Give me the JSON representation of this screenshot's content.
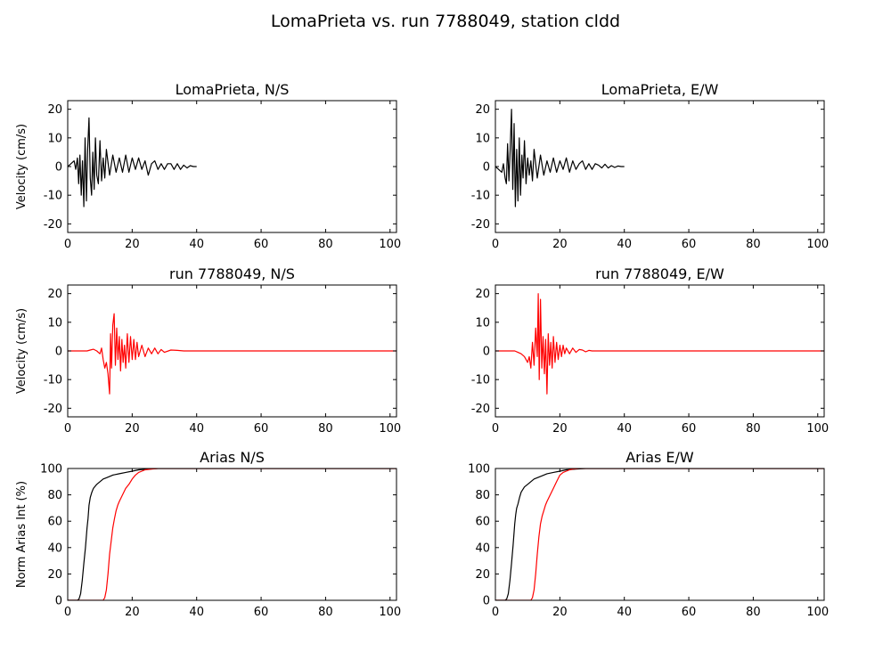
{
  "figure_title": "LomaPrieta vs. run 7788049, station cldd",
  "colors": {
    "recorded": "#000000",
    "simulated": "#ff0000"
  },
  "chart_data": [
    {
      "id": "ns_rec",
      "type": "line",
      "title": "LomaPrieta, N/S",
      "ylabel": "Velocity (cm/s)",
      "xlim": [
        0,
        102
      ],
      "ylim": [
        -23,
        23
      ],
      "xticks": [
        0,
        20,
        40,
        60,
        80,
        100
      ],
      "yticks": [
        -20,
        -10,
        0,
        10,
        20
      ],
      "grid": false,
      "series": [
        {
          "color": "#000000",
          "x": [
            0,
            1,
            2,
            2.5,
            3,
            3.4,
            3.8,
            4.2,
            4.6,
            5,
            5.4,
            5.8,
            6.2,
            6.6,
            7,
            7.4,
            7.8,
            8.2,
            8.6,
            9,
            9.5,
            10,
            10.5,
            11,
            11.5,
            12,
            13,
            14,
            15,
            16,
            17,
            18,
            19,
            20,
            21,
            22,
            23,
            24,
            25,
            26,
            27,
            28,
            29,
            30,
            31,
            32,
            33,
            34,
            35,
            36,
            37,
            38,
            39,
            40
          ],
          "y": [
            0,
            1,
            2,
            -1,
            3,
            -6,
            4,
            -10,
            2,
            -14,
            10,
            -12,
            6,
            17,
            -4,
            -10,
            5,
            -8,
            10,
            -3,
            -6,
            9,
            -5,
            3,
            -4,
            6,
            -3,
            4,
            -2,
            3,
            -2,
            4,
            -2,
            3,
            -1,
            3,
            -1,
            2,
            -3,
            1,
            2,
            -1,
            1,
            -1,
            1,
            1,
            -1,
            1,
            -1,
            0.5,
            -0.5,
            0.3,
            0,
            0
          ]
        }
      ]
    },
    {
      "id": "ew_rec",
      "type": "line",
      "title": "LomaPrieta, E/W",
      "ylabel": "",
      "xlim": [
        0,
        102
      ],
      "ylim": [
        -23,
        23
      ],
      "xticks": [
        0,
        20,
        40,
        60,
        80,
        100
      ],
      "yticks": [
        -20,
        -10,
        0,
        10,
        20
      ],
      "grid": false,
      "series": [
        {
          "color": "#000000",
          "x": [
            0,
            1,
            2,
            2.5,
            3,
            3.4,
            3.8,
            4.2,
            4.6,
            5,
            5.4,
            5.8,
            6.2,
            6.6,
            7,
            7.4,
            7.8,
            8.2,
            8.6,
            9,
            9.5,
            10,
            10.5,
            11,
            11.5,
            12,
            13,
            14,
            15,
            16,
            17,
            18,
            19,
            20,
            21,
            22,
            23,
            24,
            25,
            26,
            27,
            28,
            29,
            30,
            31,
            32,
            33,
            34,
            35,
            36,
            37,
            38,
            39,
            40
          ],
          "y": [
            0,
            -1,
            -2,
            1,
            -4,
            -6,
            8,
            -5,
            6,
            20,
            -8,
            15,
            -14,
            6,
            -12,
            10,
            -10,
            4,
            -4,
            9,
            -6,
            3,
            -3,
            2,
            -5,
            6,
            -4,
            4,
            -3,
            2,
            -2,
            3,
            -2,
            2,
            -1,
            3,
            -2,
            2,
            -1,
            1,
            2,
            -1,
            1,
            -1,
            1,
            0.5,
            -0.5,
            0.8,
            -0.5,
            0.3,
            -0.3,
            0.2,
            0,
            0
          ]
        }
      ]
    },
    {
      "id": "ns_sim",
      "type": "line",
      "title": "run 7788049, N/S",
      "ylabel": "Velocity (cm/s)",
      "xlim": [
        0,
        102
      ],
      "ylim": [
        -23,
        23
      ],
      "xticks": [
        0,
        20,
        40,
        60,
        80,
        100
      ],
      "yticks": [
        -20,
        -10,
        0,
        10,
        20
      ],
      "grid": false,
      "series": [
        {
          "color": "#ff0000",
          "x": [
            0,
            6,
            7,
            8,
            9,
            10,
            10.5,
            11,
            11.5,
            12,
            12.5,
            13,
            13.3,
            13.6,
            14,
            14.4,
            14.8,
            15.2,
            15.6,
            16,
            16.4,
            16.8,
            17.2,
            17.6,
            18,
            18.5,
            19,
            19.5,
            20,
            20.5,
            21,
            21.5,
            22,
            23,
            24,
            25,
            26,
            27,
            28,
            29,
            30,
            32,
            34,
            36,
            40,
            102
          ],
          "y": [
            0,
            0,
            0.3,
            0.6,
            0,
            -1,
            1,
            -3,
            -6,
            -4,
            -8,
            -15,
            6,
            -6,
            9,
            13,
            -5,
            8,
            -3,
            5,
            -7,
            4,
            -4,
            2,
            -6,
            6,
            -4,
            5,
            -3,
            4,
            -3,
            3,
            -2,
            2,
            -2,
            1,
            -1,
            1,
            -1,
            0.5,
            -0.5,
            0.3,
            0.2,
            0,
            0,
            0
          ]
        }
      ]
    },
    {
      "id": "ew_sim",
      "type": "line",
      "title": "run 7788049, E/W",
      "ylabel": "",
      "xlim": [
        0,
        102
      ],
      "ylim": [
        -23,
        23
      ],
      "xticks": [
        0,
        20,
        40,
        60,
        80,
        100
      ],
      "yticks": [
        -20,
        -10,
        0,
        10,
        20
      ],
      "grid": false,
      "series": [
        {
          "color": "#ff0000",
          "x": [
            0,
            6,
            7,
            8,
            9,
            10,
            10.5,
            11,
            11.5,
            12,
            12.5,
            13,
            13.3,
            13.6,
            14,
            14.4,
            14.8,
            15.2,
            15.6,
            16,
            16.4,
            16.8,
            17.2,
            17.6,
            18,
            18.5,
            19,
            19.5,
            20,
            20.5,
            21,
            21.5,
            22,
            23,
            24,
            25,
            26,
            27,
            28,
            29,
            30,
            32,
            34,
            36,
            40,
            102
          ],
          "y": [
            0,
            0,
            -0.5,
            -1,
            -2,
            -4,
            -2,
            -6,
            3,
            -5,
            8,
            -2,
            20,
            -10,
            18,
            -6,
            5,
            -8,
            4,
            -15,
            6,
            -5,
            3,
            -6,
            5,
            -4,
            3,
            -3,
            2,
            -2,
            2,
            -1,
            1,
            -1,
            1,
            -0.5,
            0.5,
            0.3,
            -0.3,
            0.2,
            0,
            0,
            0,
            0,
            0,
            0
          ]
        }
      ]
    },
    {
      "id": "ns_arias",
      "type": "line",
      "title": "Arias N/S",
      "ylabel": "Norm Arias Int (%)",
      "xlim": [
        0,
        102
      ],
      "ylim": [
        0,
        100
      ],
      "xticks": [
        0,
        20,
        40,
        60,
        80,
        100
      ],
      "yticks": [
        0,
        20,
        40,
        60,
        80,
        100
      ],
      "grid": false,
      "series": [
        {
          "color": "#000000",
          "x": [
            0,
            3,
            3.5,
            4,
            4.5,
            5,
            5.5,
            6,
            6.3,
            6.6,
            7,
            7.5,
            8,
            9,
            10,
            11,
            12,
            14,
            16,
            18,
            20,
            22,
            25,
            28,
            30,
            102
          ],
          "y": [
            0,
            0,
            1,
            5,
            15,
            28,
            40,
            55,
            62,
            72,
            78,
            82,
            85,
            88,
            90,
            92,
            93,
            95,
            96,
            97,
            98,
            99,
            99.5,
            100,
            100,
            100
          ]
        },
        {
          "color": "#ff0000",
          "x": [
            0,
            11,
            11.5,
            12,
            12.5,
            13,
            13.5,
            14,
            14.5,
            15,
            15.5,
            16,
            17,
            18,
            19,
            20,
            21,
            22,
            23,
            24,
            26,
            28,
            30,
            102
          ],
          "y": [
            0,
            0,
            2,
            8,
            20,
            35,
            45,
            55,
            62,
            68,
            72,
            75,
            80,
            85,
            88,
            92,
            95,
            97,
            98,
            99,
            99.5,
            100,
            100,
            100
          ]
        }
      ]
    },
    {
      "id": "ew_arias",
      "type": "line",
      "title": "Arias E/W",
      "ylabel": "",
      "xlim": [
        0,
        102
      ],
      "ylim": [
        0,
        100
      ],
      "xticks": [
        0,
        20,
        40,
        60,
        80,
        100
      ],
      "yticks": [
        0,
        20,
        40,
        60,
        80,
        100
      ],
      "grid": false,
      "series": [
        {
          "color": "#000000",
          "x": [
            0,
            3,
            3.5,
            4,
            4.5,
            5,
            5.5,
            6,
            6.3,
            6.6,
            7,
            7.5,
            8,
            9,
            10,
            11,
            12,
            14,
            16,
            18,
            20,
            22,
            25,
            28,
            30,
            102
          ],
          "y": [
            0,
            0,
            1,
            5,
            15,
            28,
            42,
            58,
            65,
            70,
            73,
            78,
            82,
            86,
            88,
            90,
            92,
            94,
            96,
            97,
            98,
            99,
            99.5,
            100,
            100,
            100
          ]
        },
        {
          "color": "#ff0000",
          "x": [
            0,
            11,
            11.5,
            12,
            12.5,
            13,
            13.5,
            14,
            14.5,
            15,
            15.5,
            16,
            17,
            18,
            19,
            20,
            21,
            22,
            23,
            24,
            26,
            28,
            30,
            102
          ],
          "y": [
            0,
            0,
            2,
            8,
            20,
            35,
            48,
            58,
            64,
            68,
            72,
            75,
            80,
            85,
            90,
            95,
            97,
            98,
            99,
            99.5,
            100,
            100,
            100,
            100
          ]
        }
      ]
    }
  ]
}
